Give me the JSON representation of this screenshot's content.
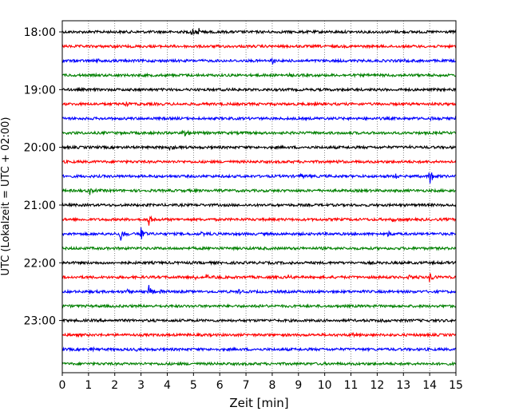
{
  "chart_data": {
    "type": "line",
    "title": "",
    "xlabel": "Zeit  [min]",
    "ylabel": "UTC (Lokalzeit = UTC + 02:00)",
    "xlim": [
      0,
      15
    ],
    "x_ticks": [
      "0",
      "1",
      "2",
      "3",
      "4",
      "5",
      "6",
      "7",
      "8",
      "9",
      "10",
      "11",
      "12",
      "13",
      "14",
      "15"
    ],
    "y_ticks": [
      {
        "label": "18:00",
        "row": 0
      },
      {
        "label": "19:00",
        "row": 4
      },
      {
        "label": "20:00",
        "row": 8
      },
      {
        "label": "21:00",
        "row": 12
      },
      {
        "label": "22:00",
        "row": 16
      },
      {
        "label": "23:00",
        "row": 20
      }
    ],
    "grid": "vertical-dotted",
    "trace_colors": [
      "#000000",
      "#ff0000",
      "#0000ff",
      "#008000"
    ],
    "series": [
      {
        "start": "18:00",
        "color": "#000000",
        "events": [
          {
            "t": 4.9,
            "amp": 1.0
          },
          {
            "t": 5.2,
            "amp": 0.5
          }
        ]
      },
      {
        "start": "18:15",
        "color": "#ff0000",
        "events": [
          {
            "t": 2.0,
            "amp": 0.25
          },
          {
            "t": 6.0,
            "amp": 0.2
          }
        ]
      },
      {
        "start": "18:30",
        "color": "#0000ff",
        "events": [
          {
            "t": 1.3,
            "amp": 0.35
          },
          {
            "t": 8.0,
            "amp": 0.45
          },
          {
            "t": 13.0,
            "amp": 0.3
          }
        ]
      },
      {
        "start": "18:45",
        "color": "#008000",
        "events": [
          {
            "t": 8.6,
            "amp": 0.3
          }
        ]
      },
      {
        "start": "19:00",
        "color": "#000000",
        "events": [
          {
            "t": 6.5,
            "amp": 0.25
          }
        ]
      },
      {
        "start": "19:15",
        "color": "#ff0000",
        "events": [
          {
            "t": 2.4,
            "amp": 0.3
          }
        ]
      },
      {
        "start": "19:30",
        "color": "#0000ff",
        "events": [
          {
            "t": 14.0,
            "amp": 0.25
          }
        ]
      },
      {
        "start": "19:45",
        "color": "#008000",
        "events": [
          {
            "t": 0.2,
            "amp": 0.4
          },
          {
            "t": 4.6,
            "amp": 0.9
          }
        ]
      },
      {
        "start": "20:00",
        "color": "#000000",
        "events": [
          {
            "t": 4.1,
            "amp": 0.35
          },
          {
            "t": 13.1,
            "amp": 0.4
          }
        ]
      },
      {
        "start": "20:15",
        "color": "#ff0000",
        "events": [
          {
            "t": 10.5,
            "amp": 0.2
          }
        ]
      },
      {
        "start": "20:30",
        "color": "#0000ff",
        "events": [
          {
            "t": 9.1,
            "amp": 0.4
          },
          {
            "t": 12.7,
            "amp": 0.6
          },
          {
            "t": 14.0,
            "amp": 1.2
          }
        ]
      },
      {
        "start": "20:45",
        "color": "#008000",
        "events": [
          {
            "t": 1.0,
            "amp": 0.7
          },
          {
            "t": 5.8,
            "amp": 0.3
          }
        ]
      },
      {
        "start": "21:00",
        "color": "#000000",
        "events": [
          {
            "t": 7.6,
            "amp": 0.25
          }
        ]
      },
      {
        "start": "21:15",
        "color": "#ff0000",
        "events": [
          {
            "t": 3.3,
            "amp": 0.9
          },
          {
            "t": 12.6,
            "amp": 0.4
          }
        ]
      },
      {
        "start": "21:30",
        "color": "#0000ff",
        "events": [
          {
            "t": 2.2,
            "amp": 1.3
          },
          {
            "t": 3.0,
            "amp": 1.2
          },
          {
            "t": 5.3,
            "amp": 0.6
          },
          {
            "t": 12.4,
            "amp": 0.4
          }
        ]
      },
      {
        "start": "21:45",
        "color": "#008000",
        "events": []
      },
      {
        "start": "22:00",
        "color": "#000000",
        "events": [
          {
            "t": 8.7,
            "amp": 0.3
          }
        ]
      },
      {
        "start": "22:15",
        "color": "#ff0000",
        "events": [
          {
            "t": 5.0,
            "amp": 0.5
          },
          {
            "t": 5.5,
            "amp": 0.45
          },
          {
            "t": 8.6,
            "amp": 0.35
          },
          {
            "t": 13.2,
            "amp": 0.4
          },
          {
            "t": 14.0,
            "amp": 0.8
          }
        ]
      },
      {
        "start": "22:30",
        "color": "#0000ff",
        "events": [
          {
            "t": 2.5,
            "amp": 0.4
          },
          {
            "t": 3.3,
            "amp": 0.9
          },
          {
            "t": 3.7,
            "amp": 0.6
          },
          {
            "t": 6.7,
            "amp": 0.35
          }
        ]
      },
      {
        "start": "22:45",
        "color": "#008000",
        "events": [
          {
            "t": 7.5,
            "amp": 0.3
          }
        ]
      },
      {
        "start": "23:00",
        "color": "#000000",
        "events": [
          {
            "t": 12.1,
            "amp": 0.35
          }
        ]
      },
      {
        "start": "23:15",
        "color": "#ff0000",
        "events": [
          {
            "t": 11.0,
            "amp": 0.3
          }
        ]
      },
      {
        "start": "23:30",
        "color": "#0000ff",
        "events": [
          {
            "t": 1.1,
            "amp": 0.45
          },
          {
            "t": 2.8,
            "amp": 0.3
          }
        ]
      },
      {
        "start": "23:45",
        "color": "#008000",
        "events": []
      }
    ]
  }
}
